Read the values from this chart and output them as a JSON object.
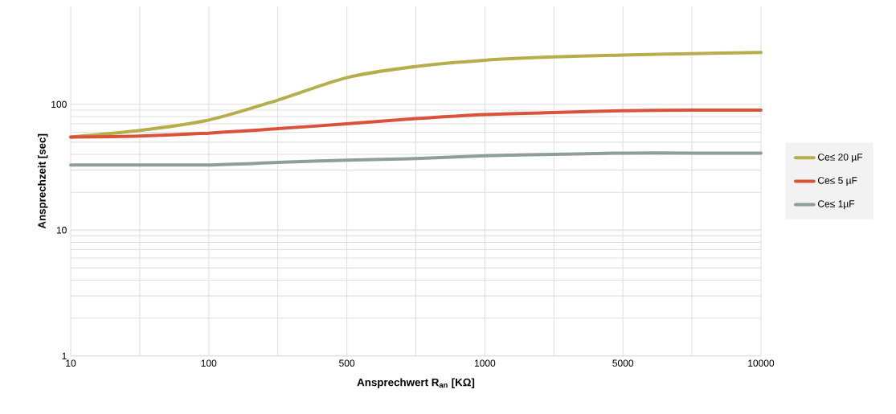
{
  "chart_data": {
    "type": "line",
    "xlabel": "Ansprechwert R$_{an}$ [KΩ]",
    "ylabel": "Ansprechzeit [sec]",
    "categories": [
      "10",
      null,
      "100",
      null,
      "500",
      null,
      "1000",
      null,
      "5000",
      null,
      "10000"
    ],
    "series": [
      {
        "name": "Ce≤ 20 µF",
        "color": "#b5ae4a",
        "values": [
          55,
          62,
          75,
          108,
          163,
          200,
          224,
          238,
          246,
          253,
          258
        ]
      },
      {
        "name": "Ce≤ 5 µF",
        "color": "#d9533b",
        "values": [
          55,
          56,
          59,
          64,
          70,
          77,
          83,
          86,
          89,
          90,
          90
        ]
      },
      {
        "name": "Ce≤ 1µF",
        "color": "#8f9e96",
        "values": [
          33,
          33,
          33,
          34.5,
          36,
          37,
          39,
          40,
          41,
          41,
          41
        ]
      }
    ],
    "log": "y",
    "ylim": [
      1,
      600
    ],
    "yticks": [
      1,
      10,
      100
    ],
    "grid": true,
    "legend": "right"
  }
}
